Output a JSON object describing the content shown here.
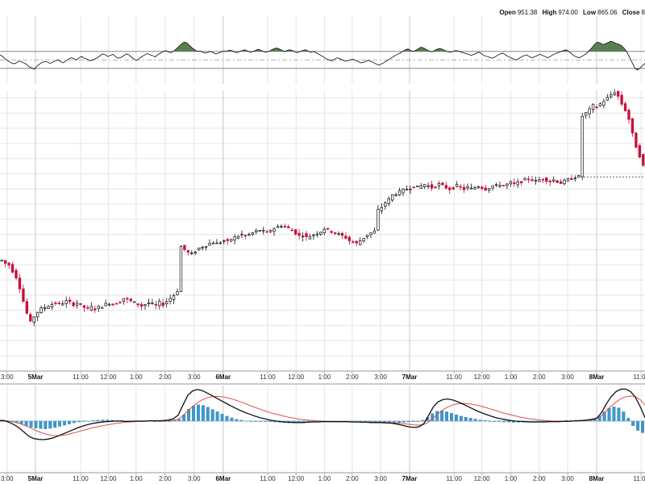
{
  "header": {
    "open_label": "Open",
    "open_value": "951.38",
    "high_label": "High",
    "high_value": "974.00",
    "low_label": "Low",
    "low_value": "865.06",
    "close_label": "Close",
    "close_value": "8"
  },
  "chart_data": [
    {
      "type": "line",
      "name": "oscillator",
      "upper_band_level": 70,
      "lower_band_level": 30,
      "mid_level": 50,
      "fill_above_color": "#5a7f4f",
      "fill_below_color": "#b84a4a",
      "values": [
        62,
        58,
        52,
        48,
        44,
        41,
        42,
        47,
        46,
        43,
        40,
        34,
        31,
        28,
        35,
        40,
        44,
        46,
        45,
        42,
        44,
        48,
        50,
        46,
        43,
        47,
        52,
        55,
        53,
        50,
        55,
        58,
        54,
        52,
        48,
        49,
        52,
        55,
        60,
        64,
        62,
        58,
        61,
        63,
        57,
        54,
        56,
        60,
        64,
        62,
        56,
        51,
        49,
        54,
        58,
        62,
        65,
        62,
        60,
        57,
        63,
        66,
        70,
        72,
        69,
        67,
        71,
        76,
        82,
        88,
        92,
        90,
        84,
        78,
        74,
        70,
        71,
        68,
        66,
        68,
        70,
        67,
        64,
        66,
        69,
        71,
        70,
        73,
        72,
        69,
        67,
        70,
        72,
        74,
        71,
        68,
        70,
        72,
        75,
        73,
        70,
        68,
        70,
        73,
        76,
        78,
        76,
        73,
        70,
        72,
        74,
        72,
        69,
        67,
        70,
        72,
        74,
        71,
        68,
        70,
        67,
        64,
        60,
        57,
        52,
        50,
        48,
        51,
        55,
        53,
        50,
        47,
        48,
        50,
        52,
        49,
        46,
        43,
        44,
        47,
        49,
        46,
        43,
        40,
        38,
        41,
        44,
        48,
        52,
        56,
        60,
        63,
        66,
        70,
        74,
        76,
        72,
        70,
        73,
        77,
        80,
        78,
        74,
        71,
        69,
        72,
        75,
        77,
        75,
        72,
        70,
        68,
        70,
        72,
        71,
        69,
        67,
        65,
        63,
        61,
        63,
        66,
        68,
        64,
        60,
        58,
        56,
        54,
        57,
        61,
        64,
        66,
        62,
        58,
        55,
        52,
        50,
        53,
        57,
        60,
        62,
        58,
        55,
        57,
        60,
        63,
        61,
        58,
        55,
        58,
        62,
        65,
        67,
        70,
        72,
        74,
        70,
        65,
        60,
        57,
        55,
        58,
        62,
        67,
        73,
        80,
        88,
        92,
        90,
        86,
        88,
        91,
        94,
        92,
        89,
        87,
        84,
        78,
        70,
        58,
        45,
        32,
        26,
        30,
        36,
        42
      ]
    },
    {
      "type": "line",
      "name": "price",
      "y_trend": [
        913,
        911,
        910,
        906,
        902,
        895,
        886,
        878,
        872,
        876,
        879,
        881,
        882,
        883,
        884,
        885,
        884,
        885,
        886,
        885,
        884,
        885,
        883,
        882,
        881,
        882,
        881,
        882,
        883,
        884,
        885,
        884,
        885,
        886,
        888,
        887,
        886,
        885,
        884,
        883,
        884,
        885,
        884,
        883,
        885,
        884,
        886,
        888,
        890,
        893,
        922,
        920,
        918,
        917,
        919,
        921,
        922,
        923,
        924,
        925,
        924,
        925,
        926,
        925,
        927,
        928,
        929,
        930,
        929,
        930,
        931,
        932,
        933,
        932,
        931,
        933,
        934,
        935,
        936,
        935,
        934,
        933,
        931,
        929,
        930,
        928,
        929,
        930,
        931,
        932,
        934,
        933,
        932,
        931,
        930,
        929,
        928,
        926,
        925,
        924,
        926,
        928,
        930,
        931,
        932,
        946,
        948,
        951,
        953,
        956,
        957,
        958,
        959,
        960,
        961,
        962,
        961,
        962,
        963,
        962,
        961,
        962,
        963,
        962,
        961,
        960,
        961,
        962,
        961,
        960,
        961,
        960,
        961,
        962,
        961,
        960,
        961,
        962,
        962,
        963,
        962,
        963,
        964,
        963,
        964,
        965,
        966,
        967,
        966,
        965,
        966,
        967,
        966,
        965,
        966,
        965,
        964,
        965,
        966,
        967,
        968,
        968,
        1008,
        1010,
        1012,
        1015,
        1014,
        1016,
        1018,
        1020,
        1022,
        1024,
        1021,
        1016,
        1012,
        1006,
        996,
        988,
        982,
        975
      ],
      "y_range": [
        840,
        1025
      ],
      "up_color": "#111111",
      "down_color": "#c8103c",
      "reference_level": 968
    },
    {
      "type": "bar",
      "name": "macd",
      "histogram_color": "#3a9ad0",
      "macd_line_color": "#111111",
      "signal_line_color": "#d9534f",
      "histogram": [
        0.4,
        0.2,
        0.0,
        -0.4,
        -0.9,
        -1.6,
        -2.1,
        -2.4,
        -2.6,
        -2.7,
        -2.5,
        -2.2,
        -1.8,
        -1.4,
        -1.0,
        -0.6,
        -0.3,
        -0.1,
        0.1,
        0.2,
        0.3,
        0.4,
        0.4,
        0.3,
        0.2,
        0.2,
        0.1,
        0.1,
        0.0,
        0.0,
        0.1,
        0.1,
        0.0,
        -0.1,
        -0.1,
        0.0,
        0.2,
        0.6,
        2.2,
        4.1,
        5.2,
        5.6,
        5.4,
        4.8,
        4.0,
        3.2,
        2.4,
        1.7,
        1.1,
        0.6,
        0.3,
        0.1,
        0.0,
        -0.1,
        -0.1,
        -0.2,
        -0.2,
        -0.3,
        -0.4,
        -0.5,
        -0.6,
        -0.6,
        -0.5,
        -0.4,
        -0.3,
        -0.2,
        -0.2,
        -0.1,
        -0.1,
        0.0,
        0.0,
        0.0,
        -0.1,
        -0.1,
        -0.2,
        -0.3,
        -0.3,
        -0.4,
        -0.4,
        -0.5,
        -0.5,
        -0.6,
        -0.6,
        -0.5,
        -0.4,
        -0.3,
        -0.2,
        -0.1,
        0.3,
        1.2,
        2.6,
        3.4,
        3.6,
        3.2,
        2.7,
        2.2,
        1.7,
        1.3,
        1.0,
        0.7,
        0.4,
        0.2,
        0.0,
        -0.1,
        -0.2,
        -0.3,
        -0.3,
        -0.4,
        -0.4,
        -0.3,
        -0.3,
        -0.2,
        -0.2,
        -0.1,
        -0.1,
        0.0,
        0.1,
        0.1,
        0.2,
        0.2,
        0.3,
        0.3,
        0.4,
        0.4,
        0.5,
        1.6,
        3.2,
        4.4,
        4.9,
        4.5,
        3.2,
        1.0,
        -1.6,
        -3.2,
        -4.0
      ],
      "macd": [
        0.2,
        0.1,
        -0.5,
        -1.3,
        -2.4,
        -3.8,
        -5.2,
        -6.0,
        -6.3,
        -6.4,
        -6.2,
        -5.8,
        -5.2,
        -4.5,
        -3.8,
        -3.1,
        -2.4,
        -1.8,
        -1.3,
        -0.9,
        -0.6,
        -0.4,
        -0.2,
        -0.1,
        0.0,
        0.0,
        -0.1,
        -0.1,
        0.0,
        0.0,
        0.0,
        0.1,
        0.1,
        0.1,
        0.2,
        0.4,
        0.8,
        2.0,
        5.5,
        8.8,
        10.4,
        10.9,
        10.5,
        9.7,
        8.8,
        7.9,
        7.0,
        6.1,
        5.2,
        4.4,
        3.6,
        2.9,
        2.3,
        1.7,
        1.2,
        0.8,
        0.4,
        0.1,
        -0.1,
        -0.3,
        -0.4,
        -0.5,
        -0.5,
        -0.5,
        -0.4,
        -0.3,
        -0.3,
        -0.2,
        -0.2,
        -0.2,
        -0.2,
        -0.2,
        -0.2,
        -0.3,
        -0.3,
        -0.4,
        -0.4,
        -0.5,
        -0.5,
        -0.5,
        -0.6,
        -0.7,
        -0.9,
        -1.2,
        -1.6,
        -2.0,
        -2.2,
        -2.0,
        -1.0,
        1.8,
        4.8,
        6.6,
        7.4,
        7.6,
        7.3,
        6.7,
        6.0,
        5.2,
        4.4,
        3.6,
        2.9,
        2.3,
        1.7,
        1.2,
        0.8,
        0.5,
        0.2,
        0.0,
        -0.1,
        -0.2,
        -0.3,
        -0.3,
        -0.3,
        -0.3,
        -0.2,
        -0.2,
        -0.2,
        -0.1,
        -0.1,
        0.0,
        0.1,
        0.2,
        0.4,
        0.6,
        1.0,
        3.0,
        6.0,
        8.5,
        10.2,
        11.0,
        11.0,
        10.2,
        8.2,
        5.0,
        1.2
      ],
      "signal": [
        0.0,
        0.0,
        -0.1,
        -0.4,
        -0.8,
        -1.4,
        -2.1,
        -2.9,
        -3.6,
        -4.2,
        -4.7,
        -5.0,
        -5.0,
        -4.9,
        -4.6,
        -4.2,
        -3.8,
        -3.3,
        -2.9,
        -2.4,
        -2.0,
        -1.7,
        -1.4,
        -1.1,
        -0.8,
        -0.6,
        -0.4,
        -0.3,
        -0.2,
        -0.1,
        -0.1,
        0.0,
        0.0,
        0.0,
        0.1,
        0.1,
        0.3,
        0.6,
        1.8,
        3.5,
        5.0,
        6.3,
        7.3,
        8.0,
        8.4,
        8.5,
        8.4,
        8.1,
        7.7,
        7.2,
        6.6,
        6.0,
        5.3,
        4.7,
        4.1,
        3.5,
        3.0,
        2.5,
        2.1,
        1.7,
        1.3,
        1.0,
        0.7,
        0.5,
        0.3,
        0.2,
        0.1,
        0.0,
        -0.1,
        -0.1,
        -0.2,
        -0.2,
        -0.2,
        -0.2,
        -0.3,
        -0.3,
        -0.3,
        -0.4,
        -0.4,
        -0.4,
        -0.5,
        -0.5,
        -0.6,
        -0.7,
        -0.9,
        -1.1,
        -1.3,
        -1.4,
        -1.2,
        -0.4,
        1.0,
        2.5,
        3.8,
        4.8,
        5.5,
        5.9,
        6.1,
        6.0,
        5.8,
        5.5,
        5.1,
        4.6,
        4.1,
        3.6,
        3.1,
        2.6,
        2.2,
        1.8,
        1.4,
        1.1,
        0.8,
        0.6,
        0.4,
        0.2,
        0.1,
        0.0,
        0.0,
        0.0,
        0.0,
        0.0,
        0.1,
        0.1,
        0.2,
        0.4,
        0.9,
        2.0,
        3.6,
        5.2,
        6.6,
        7.7,
        8.4,
        8.6,
        8.4,
        7.4,
        5.5
      ]
    }
  ],
  "axis": {
    "tick_labels": [
      {
        "label": "3:00",
        "bold": false,
        "t": 0.011
      },
      {
        "label": "5Mar",
        "bold": true,
        "t": 0.055
      },
      {
        "label": "11:00",
        "bold": false,
        "t": 0.125
      },
      {
        "label": "12:00",
        "bold": false,
        "t": 0.168
      },
      {
        "label": "1:00",
        "bold": false,
        "t": 0.211
      },
      {
        "label": "2:00",
        "bold": false,
        "t": 0.256
      },
      {
        "label": "3:00",
        "bold": false,
        "t": 0.301
      },
      {
        "label": "6Mar",
        "bold": true,
        "t": 0.346
      },
      {
        "label": "11:00",
        "bold": false,
        "t": 0.415
      },
      {
        "label": "12:00",
        "bold": false,
        "t": 0.459
      },
      {
        "label": "1:00",
        "bold": false,
        "t": 0.503
      },
      {
        "label": "2:00",
        "bold": false,
        "t": 0.546
      },
      {
        "label": "3:00",
        "bold": false,
        "t": 0.59
      },
      {
        "label": "7Mar",
        "bold": true,
        "t": 0.635
      },
      {
        "label": "11:00",
        "bold": false,
        "t": 0.704
      },
      {
        "label": "12:00",
        "bold": false,
        "t": 0.747
      },
      {
        "label": "1:00",
        "bold": false,
        "t": 0.792
      },
      {
        "label": "2:00",
        "bold": false,
        "t": 0.836
      },
      {
        "label": "3:00",
        "bold": false,
        "t": 0.88
      },
      {
        "label": "8Mar",
        "bold": true,
        "t": 0.925
      },
      {
        "label": "11:00",
        "bold": false,
        "t": 0.994
      }
    ],
    "day_boundaries": [
      0.048,
      0.34,
      0.632,
      0.918
    ]
  }
}
